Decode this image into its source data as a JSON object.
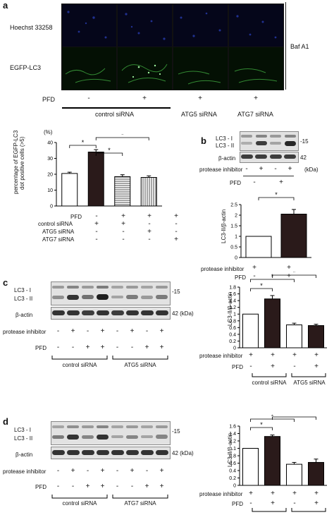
{
  "panels": {
    "a": {
      "letter": "a",
      "rows": [
        "Hoechst 33258",
        "EGFP-LC3"
      ],
      "baf_label": "Baf A1",
      "pfd_label": "PFD",
      "pfd_signs": [
        "-",
        "+",
        "+",
        "+"
      ],
      "groups": [
        "control siRNA",
        "ATG5 siRNA",
        "ATG7 siRNA"
      ],
      "percent_unit": "(%)",
      "chart_ylabel": [
        "percentage of EGFP-LC3",
        "dot positive cells (>5)"
      ],
      "row_labels": [
        "PFD",
        "control siRNA",
        "ATG5 siRNA",
        "ATG7 siRNA"
      ],
      "table": [
        [
          "-",
          "+",
          "+",
          "+"
        ],
        [
          "+",
          "+",
          "-",
          "-"
        ],
        [
          "-",
          "-",
          "+",
          "-"
        ],
        [
          "-",
          "-",
          "-",
          "+"
        ]
      ],
      "star": "*"
    },
    "b": {
      "letter": "b",
      "blot_labels": [
        "LC3 - I",
        "LC3 - II",
        "β-actin"
      ],
      "marker_15": "15",
      "marker_42": "42",
      "kda": "(kDa)",
      "pi_label": "protease inhibitor",
      "pi_signs": [
        "-",
        "+",
        "-",
        "+"
      ],
      "pfd_label": "PFD",
      "pfd_signs": [
        "-",
        "+"
      ],
      "ylabel": "LC3-II/β-actin",
      "chart_pi_signs": [
        "+",
        "+"
      ],
      "chart_pfd_signs": [
        "-",
        "+"
      ],
      "star": "*"
    },
    "c": {
      "letter": "c",
      "blot_labels": [
        "LC3 - I",
        "LC3 - II",
        "β-actin"
      ],
      "marker_15": "15",
      "marker_42": "42 (kDa)",
      "pi_label": "protease inhibitor",
      "pi_signs": [
        "-",
        "+",
        "-",
        "+",
        "-",
        "+",
        "-",
        "+"
      ],
      "pfd_label": "PFD",
      "pfd_signs": [
        "-",
        "-",
        "+",
        "+",
        "-",
        "-",
        "+",
        "+"
      ],
      "groups": [
        "control siRNA",
        "ATG5 siRNA"
      ],
      "ylabel": "LC3-II/β-actin",
      "chart_pi_signs": [
        "+",
        "+",
        "+",
        "+"
      ],
      "chart_pfd_signs": [
        "-",
        "+",
        "-",
        "+"
      ],
      "star": "*"
    },
    "d": {
      "letter": "d",
      "blot_labels": [
        "LC3 - I",
        "LC3 - II",
        "β-actin"
      ],
      "marker_15": "15",
      "marker_42": "42 (kDa)",
      "pi_label": "protease inhibitor",
      "pi_signs": [
        "-",
        "+",
        "-",
        "+",
        "-",
        "+",
        "-",
        "+"
      ],
      "pfd_label": "PFD",
      "pfd_signs": [
        "-",
        "-",
        "+",
        "+",
        "-",
        "-",
        "+",
        "+"
      ],
      "groups": [
        "control siRNA",
        "ATG7 siRNA"
      ],
      "ylabel": "LC3-II/β-actin",
      "chart_pi_signs": [
        "+",
        "+",
        "+",
        "+"
      ],
      "chart_pfd_signs": [
        "-",
        "+",
        "-",
        "+"
      ],
      "star": "*"
    }
  },
  "chart_data": [
    {
      "type": "bar",
      "panel": "a",
      "categories": [
        "1",
        "2",
        "3",
        "4"
      ],
      "values": [
        20.5,
        34,
        18.5,
        18
      ],
      "errors": [
        0.8,
        1.5,
        1.2,
        1.0
      ],
      "fills": [
        "white",
        "dark",
        "hstripe",
        "vstripe"
      ],
      "ylabel": "percentage of EGFP-LC3 dot positive cells (>5)",
      "yticks": [
        "0",
        "10",
        "20",
        "30",
        "40"
      ],
      "ylim": [
        0,
        40
      ],
      "grid": false
    },
    {
      "type": "bar",
      "panel": "b",
      "categories": [
        "1",
        "2"
      ],
      "values": [
        1.0,
        2.05
      ],
      "errors": [
        0,
        0.22
      ],
      "fills": [
        "white",
        "dark"
      ],
      "ylabel": "LC3-II/β-actin",
      "yticks": [
        "0",
        "0.5",
        "1",
        "1.5",
        "2",
        "2.5"
      ],
      "ylim": [
        0,
        2.5
      ],
      "grid": false
    },
    {
      "type": "bar",
      "panel": "c",
      "categories": [
        "1",
        "2",
        "3",
        "4"
      ],
      "values": [
        1.0,
        1.45,
        0.68,
        0.66
      ],
      "errors": [
        0,
        0.1,
        0.05,
        0.04
      ],
      "fills": [
        "white",
        "dark",
        "white",
        "dark"
      ],
      "ylabel": "LC3-II/β-actin",
      "yticks": [
        "0",
        "0.2",
        "0.4",
        "0.6",
        "0.8",
        "1",
        "1.2",
        "1.4",
        "1.6",
        "1.8"
      ],
      "ylim": [
        0,
        1.8
      ],
      "grid": false
    },
    {
      "type": "bar",
      "panel": "d",
      "categories": [
        "1",
        "2",
        "3",
        "4"
      ],
      "values": [
        1.0,
        1.32,
        0.57,
        0.62
      ],
      "errors": [
        0,
        0.04,
        0.05,
        0.09
      ],
      "fills": [
        "white",
        "dark",
        "white",
        "dark"
      ],
      "ylabel": "LC3-II/β-actin",
      "yticks": [
        "0",
        "0.2",
        "0.4",
        "0.6",
        "0.8",
        "1",
        "1.2",
        "1.4",
        "1.6"
      ],
      "ylim": [
        0,
        1.6
      ],
      "grid": false
    }
  ]
}
